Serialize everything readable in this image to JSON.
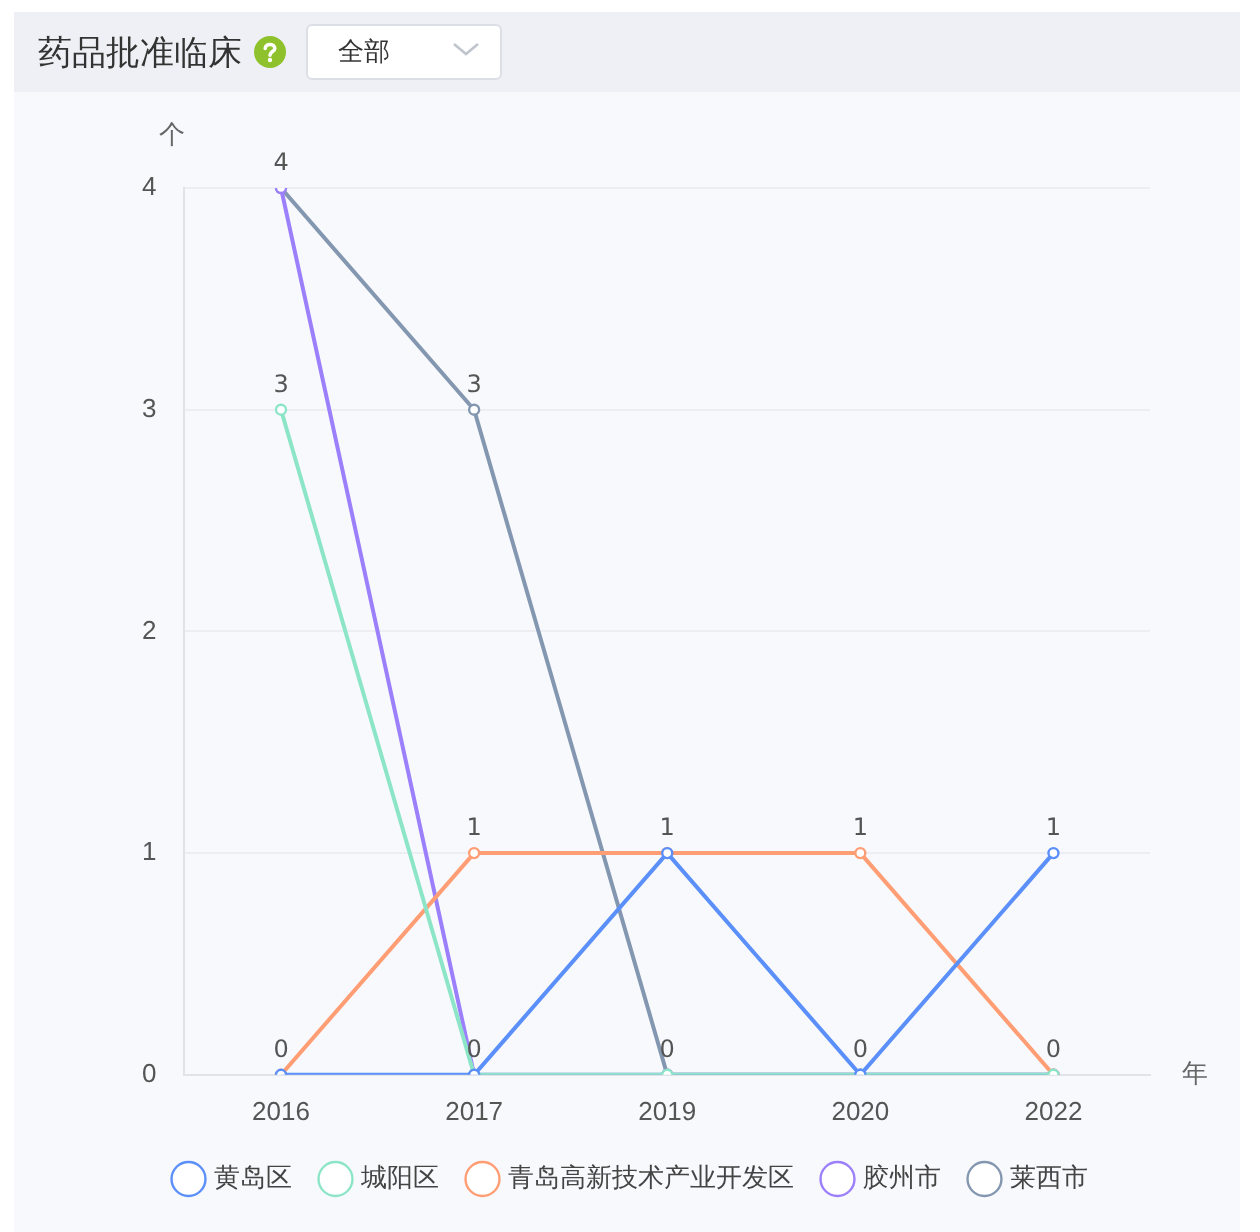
{
  "chart_data": {
    "type": "line",
    "title": "药品批准临床",
    "annotations": [
      "全部"
    ],
    "xlabel": "年",
    "ylabel": "个",
    "categories": [
      "2016",
      "2017",
      "2019",
      "2020",
      "2022"
    ],
    "series": [
      {
        "name": "黄岛区",
        "color": "#5b8ff9",
        "values": [
          0,
          0,
          1,
          0,
          1
        ],
        "value_labels": [
          "0",
          "0",
          "1",
          "0",
          "1"
        ]
      },
      {
        "name": "城阳区",
        "color": "#8de5c8",
        "values": [
          3,
          0,
          0,
          0,
          0
        ],
        "value_labels": [
          "3",
          null,
          null,
          null,
          null
        ]
      },
      {
        "name": "青岛高新技术产业开发区",
        "color": "#ff9d74",
        "values": [
          0,
          1,
          1,
          1,
          0
        ],
        "value_labels": [
          null,
          "1",
          null,
          "1",
          null
        ]
      },
      {
        "name": "胶州市",
        "color": "#9b7ffb",
        "values": [
          4,
          0,
          0,
          0,
          0
        ],
        "value_labels": [
          null,
          null,
          null,
          null,
          null
        ]
      },
      {
        "name": "莱西市",
        "color": "#8497b0",
        "values": [
          4,
          3,
          0,
          0,
          0
        ],
        "value_labels": [
          "4",
          "3",
          "0",
          null,
          "0"
        ]
      }
    ],
    "ylim": [
      0,
      4
    ],
    "yticks": [
      0,
      1,
      2,
      3,
      4
    ],
    "grid": "y",
    "legend": "bottom",
    "marker": "circle",
    "line_style": "solid"
  }
}
